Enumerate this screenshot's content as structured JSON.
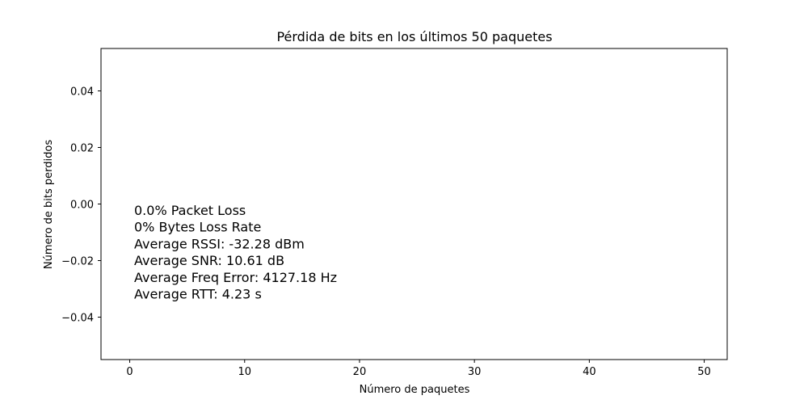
{
  "chart_data": {
    "type": "scatter",
    "title": "Pérdida de bits en los últimos 50 paquetes",
    "xlabel": "Número de paquetes",
    "ylabel": "Número de bits perdidos",
    "xlim": [
      -2.5,
      52
    ],
    "ylim": [
      -0.055,
      0.055
    ],
    "xticks": [
      0,
      10,
      20,
      30,
      40,
      50
    ],
    "yticks": [
      0.04,
      0.02,
      0.0,
      -0.02,
      -0.04
    ],
    "xtick_labels": [
      "0",
      "10",
      "20",
      "30",
      "40",
      "50"
    ],
    "ytick_labels": [
      "0.04",
      "0.02",
      "0.00",
      "−0.02",
      "−0.04"
    ],
    "series": [],
    "grid": false,
    "annotation_lines": [
      "0.0% Packet Loss",
      "0% Bytes Loss Rate",
      "Average RSSI: -32.28 dBm",
      "Average SNR: 10.61 dB",
      "Average Freq Error: 4127.18 Hz",
      "Average RTT: 4.23 s"
    ]
  }
}
